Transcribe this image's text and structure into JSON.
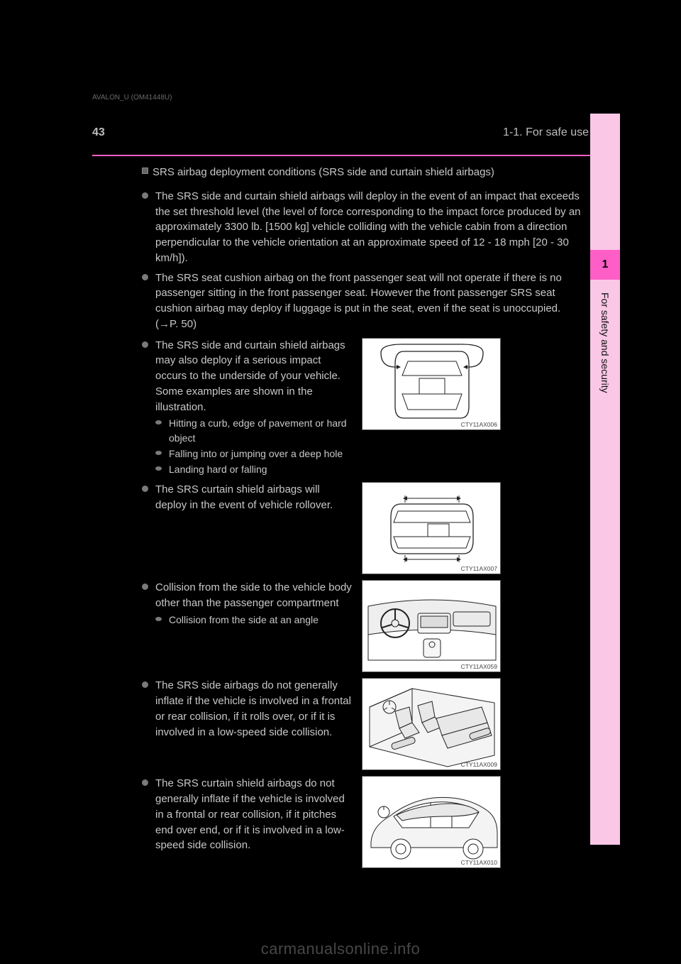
{
  "header": {
    "page_number": "43",
    "section_title": "1-1. For safe use"
  },
  "top_caption": "AVALON_U (OM41448U)",
  "sidebar": {
    "chapter_number": "1",
    "chapter_label": "For safety and security",
    "bg_color": "#fac7e6",
    "tab_color": "#ff5ec7"
  },
  "section": {
    "heading": "SRS airbag deployment conditions (SRS side and curtain shield airbags)",
    "bullets": [
      {
        "text": "The SRS side and curtain shield airbags will deploy in the event of an impact that exceeds the set threshold level (the level of force corresponding to the impact force produced by an approximately 3300 lb. [1500 kg] vehicle colliding with the vehicle cabin from a direction perpendicular to the vehicle orientation at an approximate speed of 12 - 18 mph [20 - 30 km/h]).",
        "full_width": true
      },
      {
        "text": "The SRS seat cushion airbag on the front passenger seat will not operate if there is no passenger sitting in the front passenger seat. However the front passenger SRS seat cushion airbag may deploy if luggage is put in the seat, even if the seat is unoccupied. (→P. 50)",
        "full_width": true
      }
    ],
    "figure_bullets": [
      {
        "text": "The SRS side and curtain shield airbags may also deploy if a serious impact occurs to the underside of your vehicle. Some examples are shown in the illustration.",
        "sub": [
          "Hitting a curb, edge of pavement or hard object",
          "Falling into or jumping over a deep hole",
          "Landing hard or falling"
        ],
        "fig_id": "CTY11AX006",
        "fig_type": "top-front"
      },
      {
        "text": "The SRS curtain shield airbags will deploy in the event of vehicle rollover.",
        "fig_id": "CTY11AX007",
        "fig_type": "top-side"
      },
      {
        "text": "Collision from the side to the vehicle body other than the passenger compartment",
        "sub": [
          "Collision from the side at an angle"
        ],
        "fig_id": "CTY11AX059",
        "fig_type": "dash"
      },
      {
        "text": "The SRS side airbags do not generally inflate if the vehicle is involved in a frontal or rear collision, if it rolls over, or if it is involved in a low-speed side collision.",
        "fig_id": "CTY11AX009",
        "fig_type": "interior-seats"
      },
      {
        "text": "The SRS curtain shield airbags do not generally inflate if the vehicle is involved in a frontal or rear collision, if it pitches end over end, or if it is involved in a low-speed side collision.",
        "fig_id": "CTY11AX010",
        "fig_type": "side-profile"
      }
    ]
  },
  "watermark": "carmanualsonline.info",
  "style": {
    "text_color": "#c8c8c8",
    "accent_color": "#ff5ec7",
    "bg_color": "#000000",
    "font_size_body": 15,
    "font_size_header": 16
  }
}
